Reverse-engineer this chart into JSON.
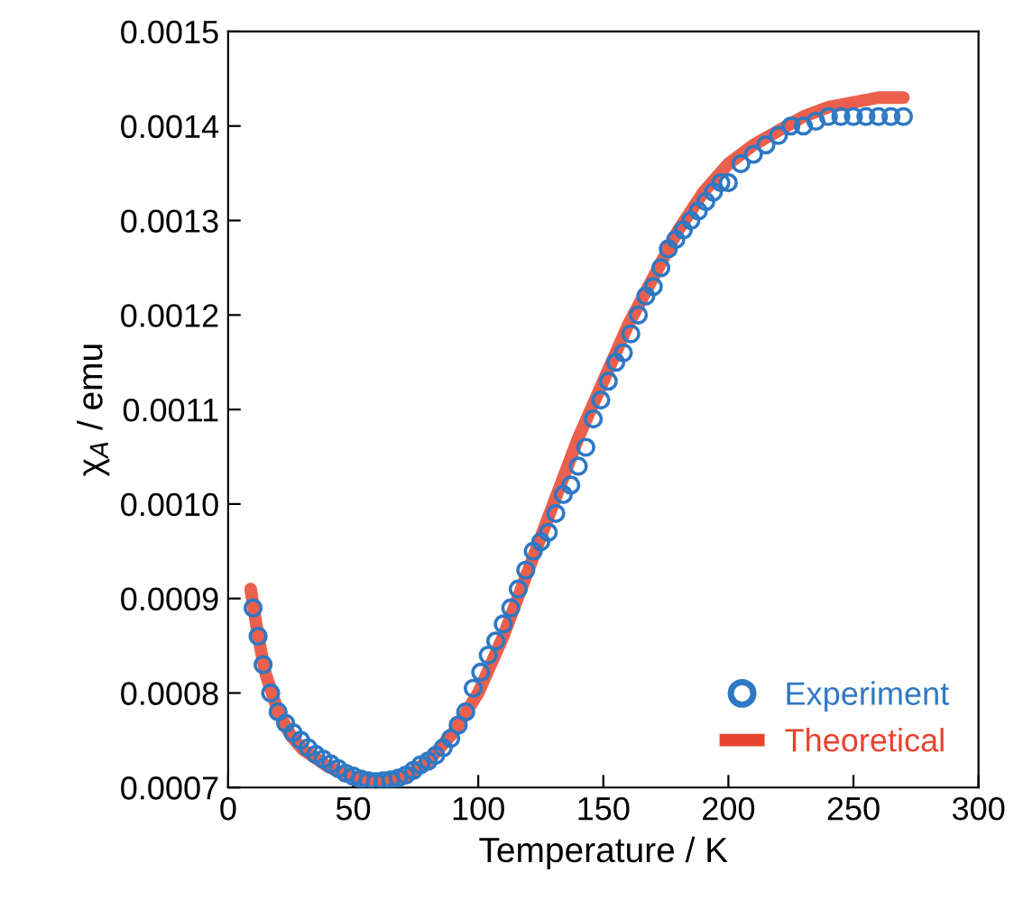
{
  "chart_data": {
    "type": "scatter",
    "xlabel": "Temperature / K",
    "ylabel": "χ$_{A}$ / emu",
    "xlim": [
      0,
      300
    ],
    "xticks": [
      0,
      50,
      100,
      150,
      200,
      250,
      300
    ],
    "ylim": [
      0.0007,
      0.0015
    ],
    "yticks": [
      0.0007,
      0.0008,
      0.0009,
      {
        "value": 0.001,
        "label": "0.0010"
      },
      0.0011,
      0.0012,
      0.0013,
      0.0014,
      0.0015
    ],
    "grid": false,
    "legend": "bottom right",
    "series": [
      {
        "name": "Theoretical",
        "type": "line",
        "color": "#e8432e",
        "marker": "none",
        "line_style": "solid",
        "x": [
          9,
          12,
          15,
          20,
          25,
          30,
          40,
          50,
          60,
          70,
          80,
          90,
          100,
          110,
          120,
          130,
          140,
          150,
          160,
          170,
          180,
          190,
          200,
          210,
          220,
          230,
          240,
          250,
          260,
          270
        ],
        "values": [
          0.00091,
          0.00086,
          0.00082,
          0.00078,
          0.000755,
          0.00074,
          0.000722,
          0.00071,
          0.000705,
          0.00071,
          0.000728,
          0.000758,
          0.0008,
          0.00086,
          0.00093,
          0.001,
          0.00107,
          0.00113,
          0.00119,
          0.00124,
          0.00129,
          0.00133,
          0.00136,
          0.00138,
          0.001395,
          0.00141,
          0.00142,
          0.001425,
          0.00143,
          0.00143
        ]
      },
      {
        "name": "Experiment",
        "color": "#2f78c4",
        "marker": "circle",
        "x": [
          10,
          12,
          14,
          17,
          20,
          23,
          26,
          29,
          32,
          35,
          38,
          41,
          44,
          47,
          50,
          53,
          56,
          59,
          62,
          65,
          68,
          71,
          74,
          77,
          80,
          83,
          86,
          89,
          92,
          95,
          98,
          101,
          104,
          107,
          110,
          113,
          116,
          119,
          122,
          125,
          128,
          131,
          134,
          137,
          140,
          143,
          146,
          149,
          152,
          155,
          158,
          161,
          164,
          167,
          170,
          173,
          176,
          179,
          182,
          185,
          188,
          191,
          194,
          197,
          200,
          205,
          210,
          215,
          220,
          225,
          230,
          235,
          240,
          245,
          250,
          255,
          260,
          265,
          270
        ],
        "values": [
          0.00089,
          0.00086,
          0.00083,
          0.0008,
          0.00078,
          0.000768,
          0.000758,
          0.00075,
          0.000742,
          0.000735,
          0.00073,
          0.000725,
          0.00072,
          0.000715,
          0.000712,
          0.000709,
          0.000707,
          0.000706,
          0.000707,
          0.000708,
          0.00071,
          0.000713,
          0.000718,
          0.000724,
          0.000728,
          0.000734,
          0.000742,
          0.000752,
          0.000766,
          0.00078,
          0.000805,
          0.000822,
          0.00084,
          0.000855,
          0.000873,
          0.00089,
          0.00091,
          0.00093,
          0.00095,
          0.00096,
          0.00097,
          0.00099,
          0.00101,
          0.00102,
          0.00104,
          0.00106,
          0.00109,
          0.00111,
          0.00113,
          0.00115,
          0.00116,
          0.00118,
          0.0012,
          0.00122,
          0.00123,
          0.00125,
          0.00127,
          0.00128,
          0.00129,
          0.0013,
          0.00131,
          0.00132,
          0.00133,
          0.00134,
          0.00134,
          0.00136,
          0.00137,
          0.00138,
          0.00139,
          0.0014,
          0.0014,
          0.001405,
          0.00141,
          0.00141,
          0.00141,
          0.00141,
          0.00141,
          0.00141,
          0.00141
        ]
      }
    ]
  }
}
